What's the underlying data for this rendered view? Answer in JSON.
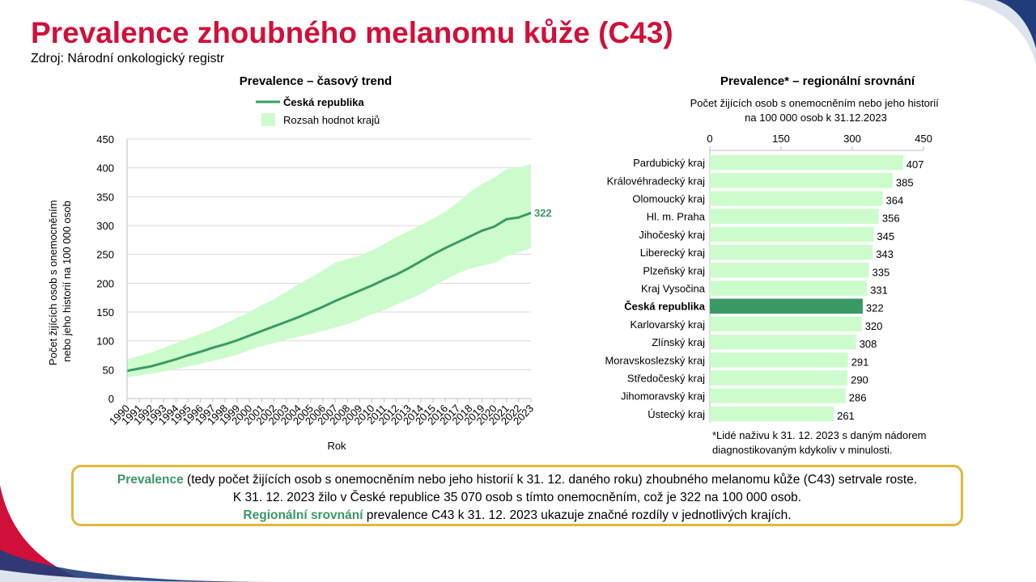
{
  "page": {
    "title": "Prevalence zhoubného melanomu kůže (C43)",
    "source": "Zdroj: Národní onkologický registr"
  },
  "colors": {
    "title": "#d0103a",
    "line": "#3a9a65",
    "band": "#ccfccc",
    "bar": "#ccfccc",
    "bar_highlight": "#3a9a65",
    "box_border": "#e2b93b",
    "accent_navy": "#1f3d7a"
  },
  "chart_data": [
    {
      "type": "line",
      "title": "Prevalence – časový trend",
      "xlabel": "Rok",
      "ylabel": "Počet žijících osob s onemocněním nebo jeho historií na 100 000 osob",
      "ylim": [
        0,
        450
      ],
      "yticks": [
        0,
        50,
        100,
        150,
        200,
        250,
        300,
        350,
        400,
        450
      ],
      "grid": true,
      "legend_position": "top",
      "end_label": "322",
      "x": [
        "1990",
        "1991",
        "1992",
        "1993",
        "1994",
        "1995",
        "1996",
        "1997",
        "1998",
        "1999",
        "2000",
        "2001",
        "2002",
        "2003",
        "2004",
        "2005",
        "2006",
        "2007",
        "2008",
        "2009",
        "2010",
        "2011",
        "2012",
        "2013",
        "2014",
        "2015",
        "2016",
        "2017",
        "2018",
        "2019",
        "2020",
        "2021",
        "2022",
        "2023"
      ],
      "series": [
        {
          "name": "Česká republika",
          "kind": "line",
          "values": [
            48,
            52,
            56,
            62,
            68,
            75,
            81,
            88,
            94,
            101,
            109,
            117,
            125,
            133,
            141,
            150,
            159,
            169,
            178,
            187,
            196,
            206,
            215,
            226,
            238,
            250,
            261,
            271,
            281,
            291,
            298,
            311,
            314,
            322
          ]
        },
        {
          "name": "Rozsah hodnot krajů",
          "kind": "band",
          "low": [
            37,
            40,
            43,
            47,
            51,
            56,
            60,
            65,
            70,
            76,
            84,
            91,
            96,
            102,
            107,
            112,
            117,
            123,
            129,
            137,
            146,
            153,
            163,
            172,
            181,
            194,
            206,
            217,
            225,
            230,
            235,
            247,
            253,
            261
          ],
          "high": [
            68,
            74,
            80,
            88,
            96,
            104,
            112,
            120,
            130,
            140,
            150,
            162,
            172,
            185,
            198,
            210,
            222,
            236,
            242,
            248,
            257,
            268,
            280,
            290,
            301,
            312,
            324,
            340,
            358,
            372,
            383,
            398,
            400,
            407
          ]
        }
      ]
    },
    {
      "type": "bar",
      "orientation": "horizontal",
      "title": "Prevalence* – regionální srovnání",
      "subtitle": "Počet žijících osob s onemocněním nebo jeho historií na 100 000 osob k 31.12.2023",
      "xlim": [
        0,
        450
      ],
      "xticks": [
        0,
        150,
        300,
        450
      ],
      "categories": [
        "Pardubický kraj",
        "Královéhradecký kraj",
        "Olomoucký kraj",
        "Hl. m. Praha",
        "Jihočeský kraj",
        "Liberecký kraj",
        "Plzeňský kraj",
        "Kraj Vysočina",
        "Česká republika",
        "Karlovarský kraj",
        "Zlínský kraj",
        "Moravskoslezský kraj",
        "Středočeský kraj",
        "Jihomoravský kraj",
        "Ústecký kraj"
      ],
      "values": [
        407,
        385,
        364,
        356,
        345,
        343,
        335,
        331,
        322,
        320,
        308,
        291,
        290,
        286,
        261
      ],
      "highlight": "Česká republika"
    }
  ],
  "footnote": {
    "line1": "*Lidé naživu k 31. 12. 2023 s daným nádorem",
    "line2": "diagnostikovaným kdykoliv v minulosti."
  },
  "summary": {
    "l1_hl": "Prevalence",
    "l1_rest": " (tedy počet žijících osob s onemocněním nebo jeho historií k 31. 12. daného roku) zhoubného melanomu kůže (C43) setrvale roste.",
    "l2": "K 31. 12. 2023 žilo v České republice 35 070 osob s tímto onemocněním, což je 322 na 100 000 osob.",
    "l3_hl": "Regionální srovnání",
    "l3_rest": " prevalence C43 k 31. 12. 2023 ukazuje značné rozdíly v jednotlivých krajích."
  }
}
